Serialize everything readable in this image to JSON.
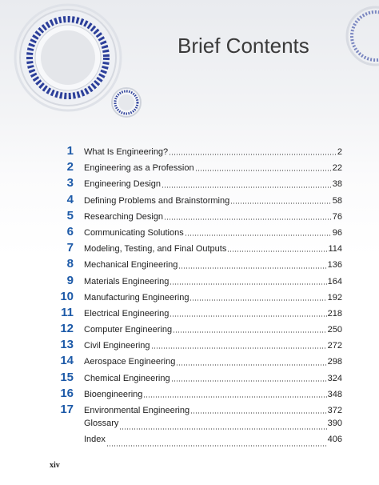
{
  "header": {
    "title": "Brief Contents"
  },
  "entries": [
    {
      "number": 1,
      "title": "What Is Engineering?",
      "page": 2
    },
    {
      "number": 2,
      "title": "Engineering as a Profession",
      "page": 22
    },
    {
      "number": 3,
      "title": "Engineering Design",
      "page": 38
    },
    {
      "number": 4,
      "title": "Defining Problems and Brainstorming",
      "page": 58
    },
    {
      "number": 5,
      "title": "Researching Design",
      "page": 76
    },
    {
      "number": 6,
      "title": "Communicating Solutions",
      "page": 96
    },
    {
      "number": 7,
      "title": "Modeling, Testing, and Final Outputs",
      "page": 114
    },
    {
      "number": 8,
      "title": "Mechanical Engineering",
      "page": 136
    },
    {
      "number": 9,
      "title": "Materials Engineering",
      "page": 164
    },
    {
      "number": 10,
      "title": "Manufacturing Engineering",
      "page": 192
    },
    {
      "number": 11,
      "title": "Electrical Engineering",
      "page": 218
    },
    {
      "number": 12,
      "title": "Computer Engineering",
      "page": 250
    },
    {
      "number": 13,
      "title": "Civil Engineering",
      "page": 272
    },
    {
      "number": 14,
      "title": "Aerospace Engineering",
      "page": 298
    },
    {
      "number": 15,
      "title": "Chemical Engineering",
      "page": 324
    },
    {
      "number": 16,
      "title": "Bioengineering",
      "page": 348
    },
    {
      "number": 17,
      "title": "Environmental Engineering",
      "page": 372
    },
    {
      "title": "Glossary",
      "page": 390
    },
    {
      "title": "Index",
      "page": 406
    }
  ],
  "footer": {
    "page_label": "xiv"
  }
}
